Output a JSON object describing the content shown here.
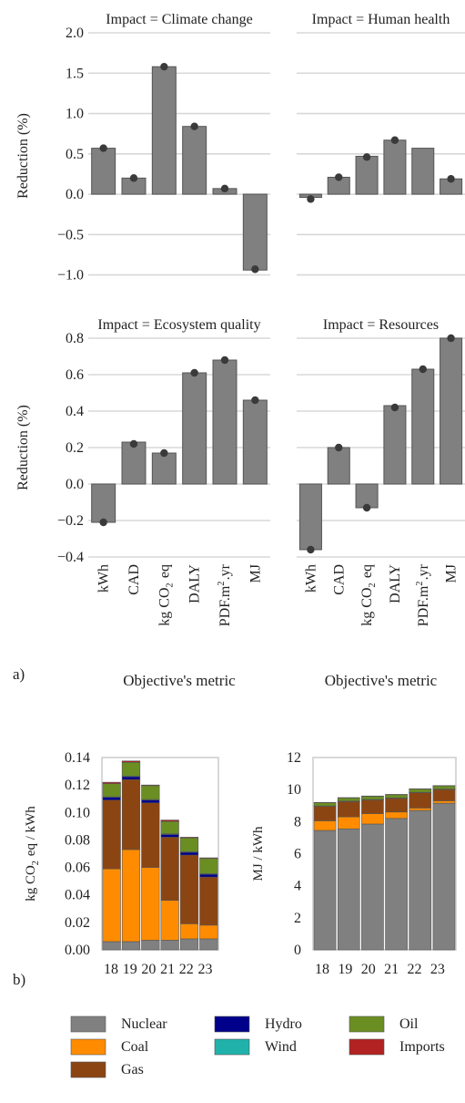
{
  "figure": {
    "label_a": "a)",
    "label_b": "b)"
  },
  "colors": {
    "bar": "#808080",
    "bar_edge": "#555555",
    "grid": "#d8d8d8",
    "frame": "#cfcfcf"
  },
  "chart_data": [
    {
      "type": "bar",
      "title": "Impact = Climate change",
      "ylabel": "Reduction (%)",
      "ylim": [
        -1.05,
        2.0
      ],
      "yticks": [
        "2.0",
        "1.5",
        "1.0",
        "0.5",
        "0.0",
        "−0.5",
        "−1.0"
      ],
      "ytick_values": [
        2.0,
        1.5,
        1.0,
        0.5,
        0.0,
        -0.5,
        -1.0
      ],
      "categories": [
        "kWh",
        "CAD",
        "kg CO2 eq",
        "DALY",
        "PDF.m2.yr",
        "MJ"
      ],
      "values": [
        0.57,
        0.2,
        1.58,
        0.84,
        0.07,
        -0.94
      ],
      "points": [
        0.57,
        0.2,
        1.58,
        0.84,
        0.07,
        -0.93
      ]
    },
    {
      "type": "bar",
      "title": "Impact = Human health",
      "ylim": [
        -1.05,
        2.0
      ],
      "categories": [
        "kWh",
        "CAD",
        "kg CO2 eq",
        "DALY",
        "PDF.m2.yr",
        "MJ"
      ],
      "values": [
        -0.04,
        0.21,
        0.47,
        0.67,
        0.57,
        0.19
      ],
      "points": [
        -0.06,
        0.21,
        0.46,
        0.67,
        null,
        0.19
      ]
    },
    {
      "type": "bar",
      "title": "Impact = Ecosystem quality",
      "ylabel": "Reduction (%)",
      "xlabel": "Objective's metric",
      "ylim": [
        -0.4,
        0.8
      ],
      "yticks": [
        "0.8",
        "0.6",
        "0.4",
        "0.2",
        "0.0",
        "−0.2",
        "−0.4"
      ],
      "ytick_values": [
        0.8,
        0.6,
        0.4,
        0.2,
        0.0,
        -0.2,
        -0.4
      ],
      "categories": [
        "kWh",
        "CAD",
        "kg CO2 eq",
        "DALY",
        "PDF.m2.yr",
        "MJ"
      ],
      "values": [
        -0.21,
        0.23,
        0.17,
        0.61,
        0.68,
        0.46
      ],
      "points": [
        -0.21,
        0.22,
        0.17,
        0.61,
        0.68,
        0.46
      ]
    },
    {
      "type": "bar",
      "title": "Impact = Resources",
      "xlabel": "Objective's metric",
      "ylim": [
        -0.4,
        0.8
      ],
      "categories": [
        "kWh",
        "CAD",
        "kg CO2 eq",
        "DALY",
        "PDF.m2.yr",
        "MJ"
      ],
      "values": [
        -0.36,
        0.2,
        -0.13,
        0.43,
        0.63,
        0.8
      ],
      "points": [
        -0.36,
        0.2,
        -0.13,
        0.42,
        0.63,
        0.8
      ]
    },
    {
      "type": "bar",
      "stacked": true,
      "ylabel": "kg CO2 eq / kWh",
      "ylim": [
        0,
        0.14
      ],
      "yticks": [
        "0.14",
        "0.12",
        "0.10",
        "0.08",
        "0.06",
        "0.04",
        "0.02",
        "0.00"
      ],
      "ytick_values": [
        0.14,
        0.12,
        0.1,
        0.08,
        0.06,
        0.04,
        0.02,
        0.0
      ],
      "categories": [
        "18",
        "19",
        "20",
        "21",
        "22",
        "23"
      ],
      "series": [
        {
          "name": "Nuclear",
          "color": "#808080",
          "values": [
            0.006,
            0.006,
            0.007,
            0.007,
            0.008,
            0.008
          ]
        },
        {
          "name": "Coal",
          "color": "#ff8c00",
          "values": [
            0.053,
            0.067,
            0.053,
            0.029,
            0.011,
            0.01
          ]
        },
        {
          "name": "Gas",
          "color": "#8b4513",
          "values": [
            0.05,
            0.051,
            0.047,
            0.046,
            0.05,
            0.035
          ]
        },
        {
          "name": "Hydro",
          "color": "#00008b",
          "values": [
            0.002,
            0.002,
            0.002,
            0.002,
            0.002,
            0.002
          ]
        },
        {
          "name": "Wind",
          "color": "#20b2aa",
          "values": [
            0.0005,
            0.0005,
            0.0005,
            0.0005,
            0.0005,
            0.0005
          ]
        },
        {
          "name": "Oil",
          "color": "#6b8e23",
          "values": [
            0.0095,
            0.01,
            0.01,
            0.009,
            0.01,
            0.011
          ]
        },
        {
          "name": "Imports",
          "color": "#b22222",
          "values": [
            0.001,
            0.001,
            0.0005,
            0.001,
            0.0005,
            0.0005
          ]
        }
      ]
    },
    {
      "type": "bar",
      "stacked": true,
      "ylabel": "MJ / kWh",
      "ylim": [
        0,
        12
      ],
      "yticks": [
        "12",
        "10",
        "8",
        "6",
        "4",
        "2",
        "0"
      ],
      "ytick_values": [
        12,
        10,
        8,
        6,
        4,
        2,
        0
      ],
      "categories": [
        "18",
        "19",
        "20",
        "21",
        "22",
        "23"
      ],
      "series": [
        {
          "name": "Nuclear",
          "color": "#808080",
          "values": [
            7.45,
            7.55,
            7.85,
            8.2,
            8.7,
            9.15
          ]
        },
        {
          "name": "Coal",
          "color": "#ff8c00",
          "values": [
            0.6,
            0.75,
            0.65,
            0.4,
            0.15,
            0.15
          ]
        },
        {
          "name": "Gas",
          "color": "#8b4513",
          "values": [
            0.9,
            0.95,
            0.85,
            0.85,
            0.95,
            0.7
          ]
        },
        {
          "name": "Hydro",
          "color": "#00008b",
          "values": [
            0.02,
            0.02,
            0.02,
            0.02,
            0.02,
            0.02
          ]
        },
        {
          "name": "Wind",
          "color": "#20b2aa",
          "values": [
            0.01,
            0.01,
            0.01,
            0.01,
            0.01,
            0.01
          ]
        },
        {
          "name": "Oil",
          "color": "#6b8e23",
          "values": [
            0.2,
            0.2,
            0.2,
            0.2,
            0.2,
            0.2
          ]
        },
        {
          "name": "Imports",
          "color": "#b22222",
          "values": [
            0.02,
            0.02,
            0.02,
            0.02,
            0.02,
            0.02
          ]
        }
      ]
    }
  ],
  "legend": {
    "entries": [
      {
        "name": "Nuclear",
        "color": "#808080"
      },
      {
        "name": "Hydro",
        "color": "#00008b"
      },
      {
        "name": "Oil",
        "color": "#6b8e23"
      },
      {
        "name": "Coal",
        "color": "#ff8c00"
      },
      {
        "name": "Wind",
        "color": "#20b2aa"
      },
      {
        "name": "Imports",
        "color": "#b22222"
      },
      {
        "name": "Gas",
        "color": "#8b4513"
      }
    ]
  }
}
